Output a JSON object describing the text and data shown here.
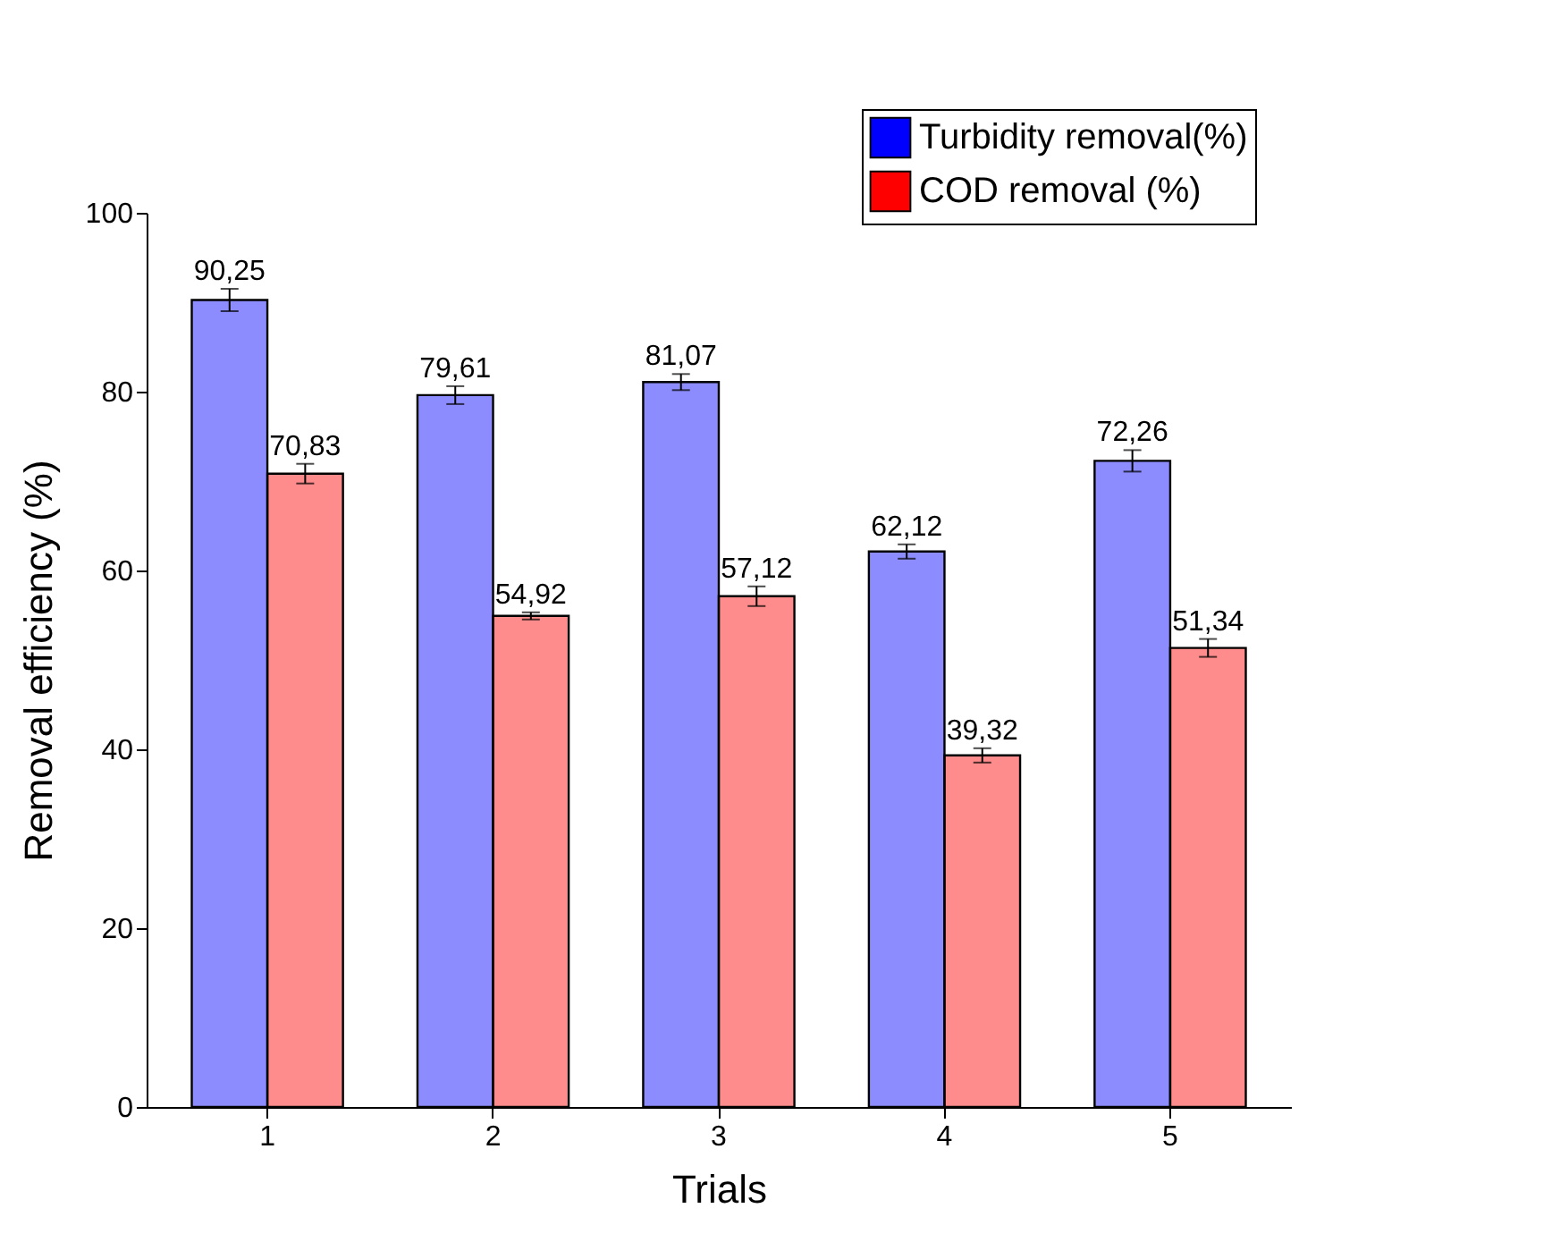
{
  "chart_data": {
    "type": "bar",
    "xlabel": "Trials",
    "ylabel": "Removal  efficiency (%)",
    "categories": [
      "1",
      "2",
      "3",
      "4",
      "5"
    ],
    "series": [
      {
        "name": "Turbidity removal(%)",
        "color": "#0000ff",
        "values": [
          90.25,
          79.61,
          81.07,
          62.12,
          72.26
        ],
        "errors": [
          1.25,
          1.0,
          0.9,
          0.8,
          1.2
        ],
        "value_labels": [
          "90,25",
          "79,61",
          "81,07",
          "62,12",
          "72,26"
        ]
      },
      {
        "name": "COD removal (%)",
        "color": "#ff0000",
        "values": [
          70.83,
          54.92,
          57.12,
          39.32,
          51.34
        ],
        "errors": [
          1.1,
          0.4,
          1.1,
          0.8,
          1.0
        ],
        "value_labels": [
          "70,83",
          "54,92",
          "57,12",
          "39,32",
          "51,34"
        ]
      }
    ],
    "ylim": [
      0,
      100
    ],
    "yticks": [
      0,
      20,
      40,
      60,
      80,
      100
    ],
    "grid": false,
    "legend": "top right"
  }
}
